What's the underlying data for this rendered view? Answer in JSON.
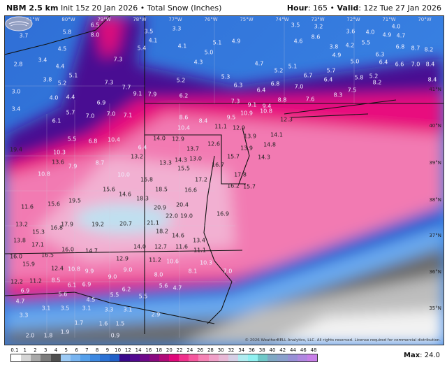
{
  "header": {
    "model": "NBM 2.5 km",
    "init": "Init 15z 20 Jan 2026",
    "sep": "•",
    "product": "Total Snow (Inches)",
    "hour_label": "Hour",
    "hour": "165",
    "valid_label": "Valid",
    "valid": "12z Tue 27 Jan 2026"
  },
  "longitudes": [
    "81°W",
    "80°W",
    "79°W",
    "78°W",
    "77°W",
    "76°W",
    "75°W",
    "74°W",
    "73°W",
    "72°W",
    "71°W",
    "70°W"
  ],
  "latitudes": [
    "41°N",
    "40°N",
    "39°N",
    "38°N",
    "37°N",
    "36°N",
    "35°N"
  ],
  "snow_values": [
    "6.5",
    "5.8",
    "3.7",
    "8.0",
    "3.5",
    "4.1",
    "3.3",
    "5.4",
    "4.1",
    "5.1",
    "5.0",
    "4.5",
    "3.4",
    "2.8",
    "4.4",
    "7.3",
    "4.3",
    "5.1",
    "3.8",
    "5.2",
    "7.3",
    "7.7",
    "5.2",
    "5.3",
    "3.0",
    "4.0",
    "4.4",
    "9.1",
    "7.9",
    "6.2",
    "6.9",
    "3.4",
    "5.7",
    "7.0",
    "7.0",
    "7.1",
    "8.6",
    "8.4",
    "6.1",
    "10.4",
    "11.1",
    "3.5",
    "3.2",
    "3.6",
    "4.0",
    "4.0",
    "4.7",
    "4.9",
    "8.6",
    "4.6",
    "4.9",
    "3.8",
    "4.2",
    "5.5",
    "6.8",
    "8.7",
    "8.2",
    "4.9",
    "6.3",
    "4.7",
    "5.0",
    "6.4",
    "6.6",
    "7.0",
    "8.4",
    "5.2",
    "5.1",
    "5.7",
    "5.8",
    "5.2",
    "6.7",
    "6.3",
    "6.8",
    "7.0",
    "6.4",
    "8.2",
    "8.4",
    "6.4",
    "7.5",
    "7.3",
    "8.8",
    "7.6",
    "8.3",
    "9.1",
    "9.4",
    "10.9",
    "10.8",
    "9.5",
    "12.3",
    "12.9",
    "14.0",
    "12.9",
    "13.9",
    "14.1",
    "13.9",
    "14.8",
    "14.3",
    "15.7",
    "16.7",
    "17.8",
    "16.2",
    "15.7",
    "12.6",
    "13.7",
    "13.0",
    "13.3",
    "14.3",
    "15.5",
    "17.2",
    "16.6",
    "19.4",
    "5.5",
    "6.8",
    "10.4",
    "10.3",
    "6.4",
    "13.2",
    "13.6",
    "7.9",
    "8.7",
    "10.8",
    "10.0",
    "16.8",
    "15.6",
    "14.6",
    "18.5",
    "18.3",
    "15.6",
    "19.5",
    "11.6",
    "20.9",
    "20.4",
    "22.0",
    "19.0",
    "17.9",
    "19.2",
    "20.7",
    "21.1",
    "13.2",
    "15.3",
    "16.8",
    "18.2",
    "16.9",
    "13.8",
    "17.1",
    "14.6",
    "13.4",
    "16.0",
    "14.7",
    "14.0",
    "12.7",
    "11.6",
    "11.1",
    "16.0",
    "16.5",
    "15.9",
    "12.9",
    "11.2",
    "10.6",
    "10.3",
    "12.4",
    "10.8",
    "9.9",
    "9.0",
    "8.0",
    "8.1",
    "7.0",
    "9.0",
    "12.2",
    "11.2",
    "8.5",
    "6.1",
    "6.9",
    "5.6",
    "4.7",
    "6.2",
    "6.9",
    "5.6",
    "5.5",
    "5.5",
    "4.5",
    "4.7",
    "3.1",
    "3.5",
    "3.1",
    "3.3",
    "3.1",
    "3.3",
    "2.9",
    "1.7",
    "1.6",
    "1.5",
    "1.9",
    "1.8",
    "2.0",
    "0.9"
  ],
  "legend": {
    "ticks": [
      "0.1",
      "1",
      "2",
      "3",
      "4",
      "5",
      "6",
      "7",
      "8",
      "9",
      "10",
      "12",
      "14",
      "16",
      "18",
      "20",
      "22",
      "24",
      "26",
      "28",
      "30",
      "32",
      "34",
      "36",
      "38",
      "40",
      "42",
      "44",
      "46",
      "48"
    ],
    "colors": [
      "#ffffff",
      "#d6d6d6",
      "#a8a8a8",
      "#7c7c7c",
      "#505050",
      "#9ccaf5",
      "#78b4f0",
      "#55a0eb",
      "#3d88e0",
      "#2c72d4",
      "#2160c8",
      "#3a0a8c",
      "#520a90",
      "#6e0a8a",
      "#8a0a80",
      "#b00a78",
      "#e0087a",
      "#f0308c",
      "#f5589e",
      "#f583b5",
      "#f0a0c8",
      "#e8b8d6",
      "#d5cfe5",
      "#b0ecf0",
      "#90f0f0",
      "#70c8c8",
      "#80a8c4",
      "#8aa0cc",
      "#9890d6",
      "#b088e0",
      "#c880e8"
    ],
    "max_label": "Max",
    "max": "24.0"
  },
  "logo": "WeatherBELL",
  "copyright": "© 2026 WeatherBELL Analytics, LLC. All rights reserved. License required for commercial distribution."
}
